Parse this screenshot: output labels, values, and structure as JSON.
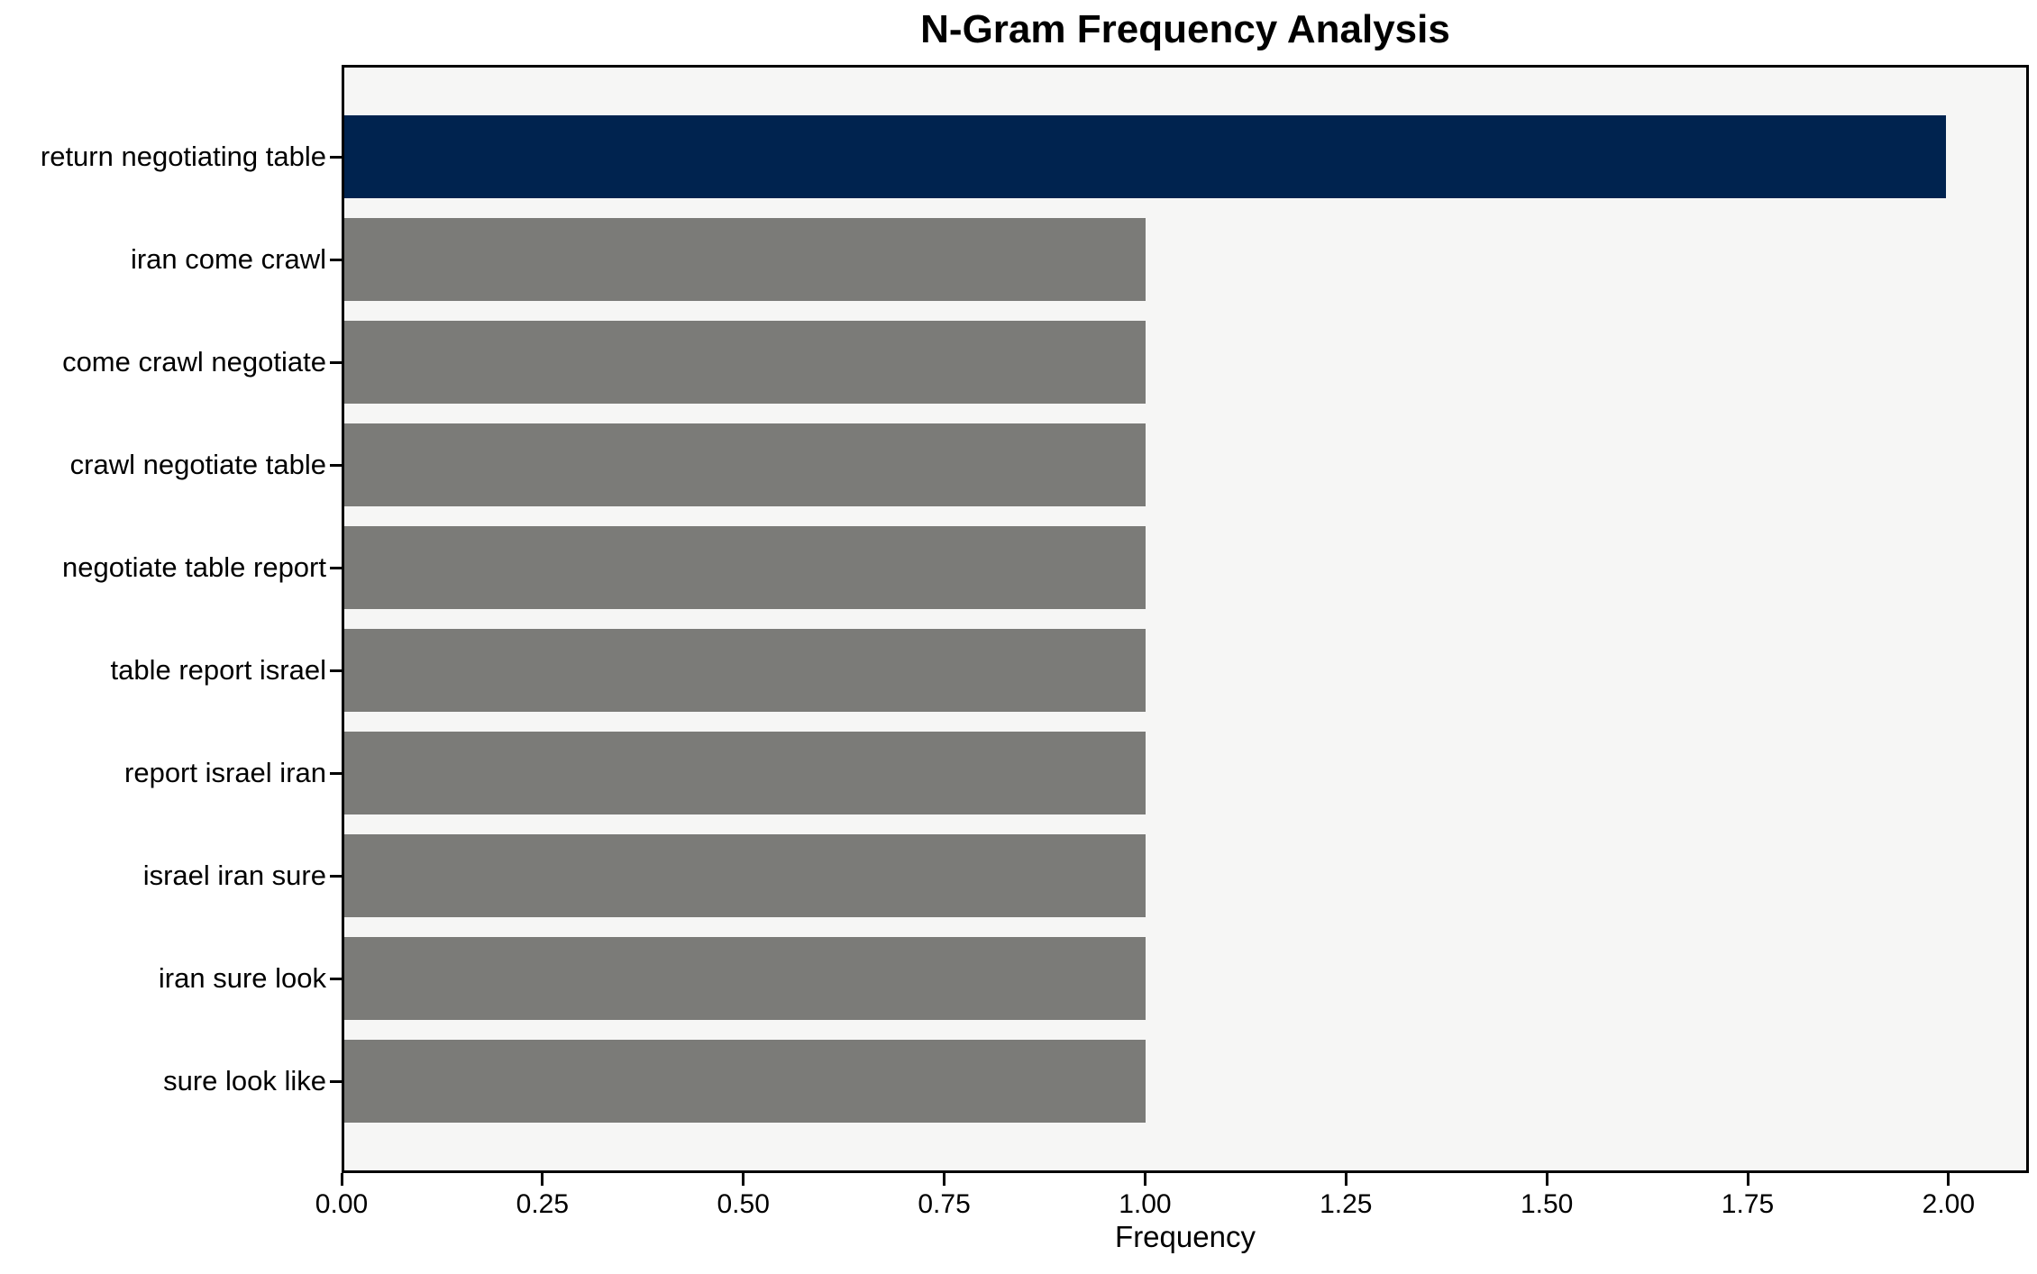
{
  "chart_data": {
    "type": "bar",
    "orientation": "horizontal",
    "title": "N-Gram Frequency Analysis",
    "xlabel": "Frequency",
    "ylabel": "",
    "categories": [
      "return negotiating table",
      "iran come crawl",
      "come crawl negotiate",
      "crawl negotiate table",
      "negotiate table report",
      "table report israel",
      "report israel iran",
      "israel iran sure",
      "iran sure look",
      "sure look like"
    ],
    "values": [
      2,
      1,
      1,
      1,
      1,
      1,
      1,
      1,
      1,
      1
    ],
    "bar_colors": [
      "#00234f",
      "#7b7b78",
      "#7b7b78",
      "#7b7b78",
      "#7b7b78",
      "#7b7b78",
      "#7b7b78",
      "#7b7b78",
      "#7b7b78",
      "#7b7b78"
    ],
    "xlim": [
      0,
      2.1
    ],
    "xticks": [
      {
        "value": 0.0,
        "label": "0.00"
      },
      {
        "value": 0.25,
        "label": "0.25"
      },
      {
        "value": 0.5,
        "label": "0.50"
      },
      {
        "value": 0.75,
        "label": "0.75"
      },
      {
        "value": 1.0,
        "label": "1.00"
      },
      {
        "value": 1.25,
        "label": "1.25"
      },
      {
        "value": 1.5,
        "label": "1.50"
      },
      {
        "value": 1.75,
        "label": "1.75"
      },
      {
        "value": 2.0,
        "label": "2.00"
      }
    ],
    "grid": false,
    "legend": null,
    "styles": {
      "axes_facecolor": "#f6f6f5",
      "figure_facecolor": "#ffffff",
      "spine_color": "#000000",
      "text_color": "#000000",
      "highlight_color": "#00234f",
      "default_bar_color": "#7b7b78"
    }
  }
}
